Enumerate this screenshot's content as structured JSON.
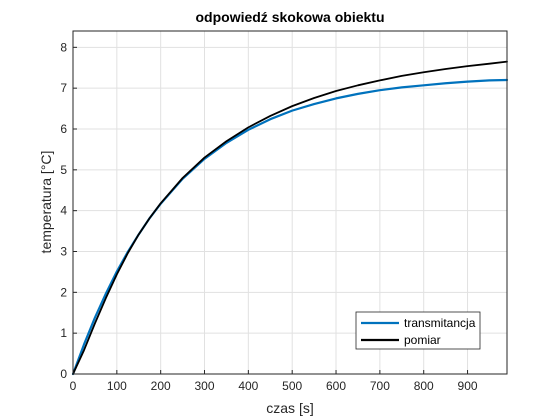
{
  "chart_data": {
    "type": "line",
    "title": "odpowiedź skokowa obiektu",
    "xlabel": "czas [s]",
    "ylabel": "temperatura [°C]",
    "xlim": [
      0,
      990
    ],
    "ylim": [
      0,
      8.4
    ],
    "xticks": [
      0,
      100,
      200,
      300,
      400,
      500,
      600,
      700,
      800,
      900
    ],
    "yticks": [
      0,
      1,
      2,
      3,
      4,
      5,
      6,
      7,
      8
    ],
    "grid": true,
    "legend_position": "bottom-right",
    "series": [
      {
        "name": "transmitancja",
        "color": "#0072BD",
        "x": [
          0,
          25,
          50,
          75,
          100,
          125,
          150,
          175,
          200,
          250,
          300,
          350,
          400,
          450,
          500,
          550,
          600,
          650,
          700,
          750,
          800,
          850,
          900,
          950,
          990
        ],
        "y": [
          0,
          0.72,
          1.38,
          1.97,
          2.51,
          2.99,
          3.42,
          3.82,
          4.17,
          4.78,
          5.27,
          5.66,
          5.98,
          6.24,
          6.45,
          6.61,
          6.75,
          6.86,
          6.95,
          7.02,
          7.07,
          7.12,
          7.16,
          7.19,
          7.2
        ]
      },
      {
        "name": "pomiar",
        "color": "#000000",
        "x": [
          0,
          25,
          50,
          75,
          100,
          125,
          150,
          175,
          200,
          250,
          300,
          350,
          400,
          450,
          500,
          550,
          600,
          650,
          700,
          750,
          800,
          850,
          900,
          950,
          990
        ],
        "y": [
          0,
          0.58,
          1.24,
          1.86,
          2.44,
          2.96,
          3.42,
          3.82,
          4.18,
          4.8,
          5.3,
          5.7,
          6.04,
          6.32,
          6.56,
          6.76,
          6.93,
          7.07,
          7.19,
          7.3,
          7.39,
          7.47,
          7.54,
          7.6,
          7.65
        ]
      }
    ]
  }
}
